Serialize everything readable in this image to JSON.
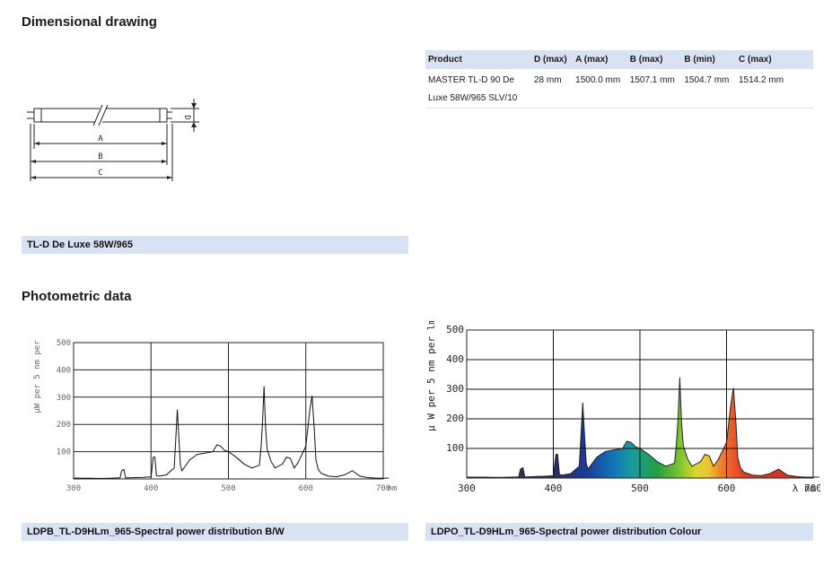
{
  "sections": {
    "dimensional_title": "Dimensional drawing",
    "photometric_title": "Photometric data"
  },
  "drawing": {
    "labels": {
      "a": "A",
      "b": "B",
      "c": "C",
      "d": "D"
    },
    "caption": "TL-D De Luxe 58W/965"
  },
  "spec_table": {
    "headers": [
      "Product",
      "D (max)",
      "A (max)",
      "B (max)",
      "B (min)",
      "C (max)"
    ],
    "row": {
      "product_line1": "MASTER TL-D 90 De",
      "product_line2": "Luxe 58W/965 SLV/10",
      "d_max": "28 mm",
      "a_max": "1500.0 mm",
      "b_max": "1507.1 mm",
      "b_min": "1504.7 mm",
      "c_max": "1514.2 mm"
    }
  },
  "chart_data": [
    {
      "type": "line",
      "title": "",
      "ylabel": "µW per 5 nm per",
      "xlabel": "nm",
      "xlim": [
        300,
        700
      ],
      "ylim": [
        0,
        500
      ],
      "xticks": [
        300,
        400,
        500,
        600,
        700
      ],
      "yticks": [
        100,
        200,
        300,
        400,
        500
      ],
      "grid": true,
      "caption": "LDPB_TL-D9HLm_965-Spectral power distribution B/W",
      "x": [
        300,
        310,
        320,
        330,
        340,
        350,
        360,
        362,
        365,
        367,
        370,
        380,
        390,
        400,
        403,
        405,
        407,
        410,
        420,
        430,
        432,
        434,
        436,
        438,
        440,
        450,
        460,
        470,
        480,
        485,
        490,
        495,
        500,
        510,
        520,
        530,
        540,
        542,
        544,
        546,
        548,
        550,
        555,
        560,
        570,
        575,
        580,
        585,
        590,
        600,
        605,
        608,
        611,
        613,
        616,
        620,
        630,
        640,
        650,
        660,
        670,
        680,
        690,
        700,
        707
      ],
      "series": [
        {
          "values": [
            3,
            3,
            3,
            2,
            2,
            3,
            4,
            30,
            35,
            4,
            4,
            5,
            6,
            8,
            80,
            80,
            12,
            10,
            15,
            40,
            150,
            255,
            150,
            50,
            30,
            70,
            90,
            95,
            100,
            125,
            120,
            105,
            100,
            80,
            55,
            40,
            50,
            110,
            200,
            340,
            190,
            110,
            65,
            40,
            55,
            80,
            75,
            40,
            60,
            120,
            250,
            305,
            180,
            70,
            35,
            20,
            10,
            8,
            15,
            30,
            10,
            5,
            3,
            3,
            3
          ]
        }
      ]
    },
    {
      "type": "line",
      "title": "",
      "ylabel": "µ W per 5 nm per lm",
      "xlabel": "λ nm",
      "xlim": [
        300,
        700
      ],
      "ylim": [
        0,
        500
      ],
      "xticks": [
        300,
        400,
        500,
        600,
        700
      ],
      "yticks": [
        100,
        200,
        300,
        400,
        500
      ],
      "grid": true,
      "background": "visible spectrum colours",
      "caption": "LDPO_TL-D9HLm_965-Spectral power distribution Colour",
      "x": [
        300,
        310,
        320,
        330,
        340,
        350,
        360,
        362,
        365,
        367,
        370,
        380,
        390,
        400,
        403,
        405,
        407,
        410,
        420,
        430,
        432,
        434,
        436,
        438,
        440,
        450,
        460,
        470,
        480,
        485,
        490,
        495,
        500,
        510,
        520,
        530,
        540,
        542,
        544,
        546,
        548,
        550,
        555,
        560,
        570,
        575,
        580,
        585,
        590,
        600,
        605,
        608,
        611,
        613,
        616,
        620,
        630,
        640,
        650,
        660,
        670,
        680,
        690,
        700,
        707
      ],
      "series": [
        {
          "values": [
            3,
            3,
            3,
            2,
            2,
            3,
            4,
            30,
            35,
            4,
            4,
            5,
            6,
            8,
            80,
            80,
            12,
            10,
            15,
            40,
            150,
            255,
            150,
            50,
            30,
            70,
            90,
            95,
            100,
            125,
            120,
            105,
            100,
            80,
            55,
            40,
            50,
            110,
            200,
            340,
            190,
            110,
            65,
            40,
            55,
            80,
            75,
            40,
            60,
            120,
            250,
            305,
            180,
            70,
            35,
            20,
            10,
            8,
            15,
            30,
            10,
            5,
            3,
            3,
            3
          ]
        }
      ]
    }
  ]
}
